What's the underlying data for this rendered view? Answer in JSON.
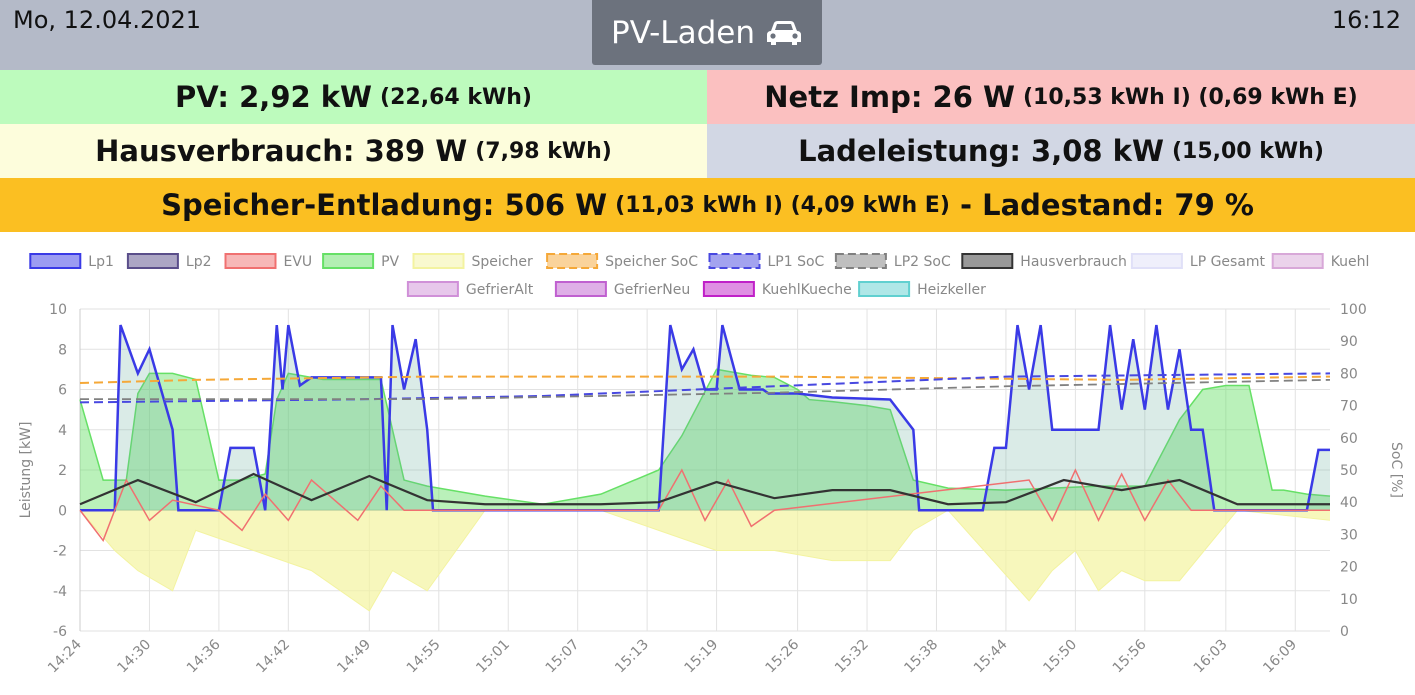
{
  "header": {
    "date": "Mo, 12.04.2021",
    "time": "16:12",
    "mode_label": "PV-Laden",
    "mode_icon": "car-icon"
  },
  "tiles": {
    "pv": {
      "label": "PV:",
      "value": "2,92 kW",
      "detail": "(22,64 kWh)",
      "color": "#bdfbbd"
    },
    "netz": {
      "label": "Netz Imp:",
      "value": "26 W",
      "detail": "(10,53 kWh I) (0,69 kWh E)",
      "color": "#fbc0c0"
    },
    "haus": {
      "label": "Hausverbrauch:",
      "value": "389 W",
      "detail": "(7,98 kWh)",
      "color": "#fdfddc"
    },
    "lade": {
      "label": "Ladeleistung:",
      "value": "3,08 kW",
      "detail": "(15,00 kWh)",
      "color": "#d2d7e4"
    },
    "speicher": {
      "label": "Speicher-Entladung:",
      "value": "506 W",
      "detail": "(11,03 kWh I) (4,09 kWh E)",
      "extra_label": "- Ladestand:",
      "extra_value": "79 %",
      "color": "#fbbf22"
    }
  },
  "chart_data": {
    "type": "line",
    "legend_position": "top",
    "grid": true,
    "x_ticks": [
      "14:24",
      "14:30",
      "14:36",
      "14:42",
      "14:49",
      "14:55",
      "15:01",
      "15:07",
      "15:13",
      "15:19",
      "15:26",
      "15:32",
      "15:38",
      "15:44",
      "15:50",
      "15:56",
      "16:03",
      "16:09"
    ],
    "xlim": [
      "14:24",
      "16:12"
    ],
    "y_left": {
      "label": "Leistung [kW]",
      "ylim": [
        -6,
        10
      ],
      "ticks": [
        -6,
        -4,
        -2,
        0,
        2,
        4,
        6,
        8,
        10
      ]
    },
    "y_right": {
      "label": "SoC [%]",
      "ylim": [
        0,
        100
      ],
      "ticks": [
        0,
        10,
        20,
        30,
        40,
        50,
        60,
        70,
        80,
        90,
        100
      ]
    },
    "legend": [
      {
        "name": "Lp1",
        "color": "#3a3ae6",
        "style": "solid"
      },
      {
        "name": "Lp2",
        "color": "#5a4e8a",
        "style": "solid"
      },
      {
        "name": "EVU",
        "color": "#f07070",
        "style": "solid"
      },
      {
        "name": "PV",
        "color": "#66e066",
        "style": "solid"
      },
      {
        "name": "Speicher",
        "color": "#f3f3a0",
        "style": "solid"
      },
      {
        "name": "Speicher SoC",
        "color": "#f5a838",
        "style": "dashed"
      },
      {
        "name": "LP1 SoC",
        "color": "#4848e0",
        "style": "dashed"
      },
      {
        "name": "LP2 SoC",
        "color": "#808080",
        "style": "dashed"
      },
      {
        "name": "Hausverbrauch",
        "color": "#333333",
        "style": "solid"
      },
      {
        "name": "LP Gesamt",
        "color": "#e0e0f8",
        "style": "solid"
      },
      {
        "name": "Kuehl",
        "color": "#d8a8d8",
        "style": "solid"
      },
      {
        "name": "GefrierAlt",
        "color": "#d090d8",
        "style": "solid"
      },
      {
        "name": "GefrierNeu",
        "color": "#c060d0",
        "style": "solid"
      },
      {
        "name": "KuehlKueche",
        "color": "#c020c8",
        "style": "solid"
      },
      {
        "name": "Heizkeller",
        "color": "#60d0d0",
        "style": "solid"
      }
    ],
    "series": [
      {
        "name": "PV",
        "axis": "left",
        "x_min": [
          0,
          2,
          4,
          5,
          6,
          8,
          10,
          12,
          14,
          16,
          17,
          18,
          19,
          21,
          24,
          26,
          28,
          30,
          32,
          35,
          40,
          45,
          50,
          52,
          55,
          58,
          60,
          62,
          63,
          65,
          68,
          70,
          72,
          75,
          80,
          88,
          92,
          95,
          97,
          99,
          101,
          103,
          104,
          106,
          108
        ],
        "values": [
          5.5,
          1.5,
          1.5,
          5.8,
          6.8,
          6.8,
          6.5,
          1.5,
          1.5,
          1.8,
          5.5,
          6.8,
          6.7,
          6.5,
          6.5,
          6.5,
          1.5,
          1.2,
          1.0,
          0.7,
          0.3,
          0.8,
          2.0,
          3.7,
          7.0,
          6.7,
          6.6,
          6.0,
          5.5,
          5.4,
          5.2,
          5.0,
          1.5,
          1.1,
          1.0,
          1.2,
          1.2,
          4.5,
          6.0,
          6.2,
          6.2,
          1.0,
          1.0,
          0.8,
          0.7
        ]
      },
      {
        "name": "Lp1",
        "axis": "left",
        "x_min": [
          0,
          3,
          3.5,
          5,
          6,
          8,
          8.5,
          10,
          12,
          13,
          14,
          15,
          16,
          17,
          17.5,
          18,
          19,
          20,
          21,
          22,
          24,
          26,
          26.5,
          27,
          28,
          29,
          30,
          30.5,
          50,
          51,
          52,
          53,
          54,
          55,
          55.5,
          57,
          58,
          59,
          59.5,
          62,
          65,
          70,
          72,
          72.5,
          78,
          79,
          80,
          81,
          82,
          83,
          84,
          88,
          89,
          90,
          91,
          92,
          93,
          94,
          95,
          96,
          97,
          98,
          99,
          100,
          103,
          104,
          106,
          107,
          107.5,
          108
        ],
        "values": [
          0,
          0,
          9.2,
          6.8,
          8,
          4,
          0,
          0,
          0,
          3.1,
          3.1,
          3.1,
          0,
          9.2,
          6.0,
          9.2,
          6.2,
          6.6,
          6.6,
          6.6,
          6.6,
          6.6,
          0,
          9.2,
          6.0,
          8.5,
          4,
          0,
          0,
          9.2,
          7,
          8,
          6,
          6,
          9.2,
          6,
          6,
          6,
          5.8,
          5.8,
          5.6,
          5.5,
          4,
          0,
          0,
          3.1,
          3.1,
          9.2,
          6,
          9.2,
          4,
          4,
          9.2,
          5,
          8.5,
          5,
          9.2,
          5,
          8,
          4,
          4,
          0,
          0,
          0,
          0,
          0,
          0,
          3,
          3,
          3
        ]
      },
      {
        "name": "Hausverbrauch",
        "axis": "left",
        "x_min": [
          0,
          5,
          10,
          15,
          20,
          25,
          30,
          35,
          40,
          45,
          50,
          55,
          60,
          65,
          70,
          75,
          80,
          85,
          90,
          95,
          100,
          105,
          108
        ],
        "values": [
          0.3,
          1.5,
          0.4,
          1.8,
          0.5,
          1.7,
          0.5,
          0.3,
          0.3,
          0.3,
          0.4,
          1.4,
          0.6,
          1.0,
          1.0,
          0.3,
          0.4,
          1.5,
          1.0,
          1.5,
          0.3,
          0.3,
          0.3
        ]
      },
      {
        "name": "Speicher",
        "axis": "left",
        "x_min": [
          0,
          3,
          5,
          8,
          10,
          15,
          20,
          25,
          27,
          30,
          35,
          45,
          50,
          55,
          60,
          65,
          70,
          72,
          75,
          82,
          84,
          86,
          88,
          90,
          92,
          95,
          100,
          108
        ],
        "values": [
          0,
          -2,
          -3,
          -4,
          -1,
          -2,
          -3,
          -5,
          -3,
          -4,
          0,
          0,
          -1,
          -2,
          -2,
          -2.5,
          -2.5,
          -1,
          0,
          -4.5,
          -3,
          -2,
          -4,
          -3,
          -3.5,
          -3.5,
          0,
          -0.5
        ]
      },
      {
        "name": "EVU",
        "axis": "left",
        "x_min": [
          0,
          2,
          4,
          6,
          8,
          12,
          14,
          16,
          18,
          20,
          24,
          26,
          28,
          50,
          52,
          54,
          56,
          58,
          60,
          82,
          84,
          86,
          88,
          90,
          92,
          94,
          96,
          108
        ],
        "values": [
          0,
          -1.5,
          1.5,
          -0.5,
          0.5,
          0,
          -1,
          0.8,
          -0.5,
          1.5,
          -0.5,
          1.2,
          0,
          0,
          2,
          -0.5,
          1.5,
          -0.8,
          0,
          1.5,
          -0.5,
          2,
          -0.5,
          1.8,
          -0.5,
          1.5,
          0,
          0
        ]
      },
      {
        "name": "Speicher SoC",
        "axis": "right",
        "x_min": [
          0,
          10,
          30,
          60,
          90,
          108
        ],
        "values": [
          77,
          78,
          79,
          79,
          78,
          79
        ]
      },
      {
        "name": "LP1 SoC",
        "axis": "right",
        "x_min": [
          0,
          25,
          40,
          60,
          80,
          108
        ],
        "values": [
          71,
          72,
          73,
          76,
          79,
          80
        ]
      },
      {
        "name": "LP2 SoC",
        "axis": "right",
        "x_min": [
          0,
          30,
          60,
          80,
          108
        ],
        "values": [
          72,
          72,
          74,
          76,
          78
        ]
      }
    ]
  }
}
